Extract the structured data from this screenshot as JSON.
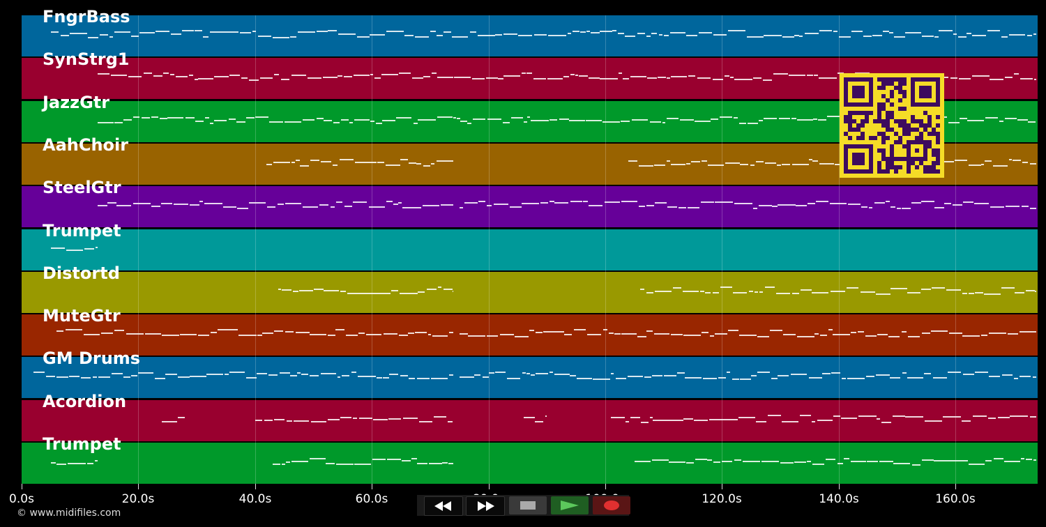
{
  "tracks": [
    {
      "name": "FngrBass",
      "color": "#00669c"
    },
    {
      "name": "SynStrg1",
      "color": "#99002f"
    },
    {
      "name": "JazzGtr",
      "color": "#00992a"
    },
    {
      "name": "AahChoir",
      "color": "#996300"
    },
    {
      "name": "SteelGtr",
      "color": "#660099"
    },
    {
      "name": "Trumpet",
      "color": "#009999"
    },
    {
      "name": "Distortd",
      "color": "#999900"
    },
    {
      "name": "MuteGtr",
      "color": "#992600"
    },
    {
      "name": "GM Drums",
      "color": "#00669c"
    },
    {
      "name": "Acordion",
      "color": "#99002f"
    },
    {
      "name": "Trumpet",
      "color": "#00992a"
    }
  ],
  "timeline": {
    "ticks": [
      "0.0s",
      "20.0s",
      "40.0s",
      "60.0s",
      "80.0s",
      "100.0s",
      "120.0s",
      "140.0s",
      "160.0s"
    ]
  },
  "transport": {
    "rewind_icon": "rewind-icon",
    "fast_forward_icon": "fast-forward-icon",
    "stop_icon": "stop-icon",
    "play_icon": "play-icon",
    "record_icon": "record-icon"
  },
  "footer": {
    "copyright": "© www.midifiles.com"
  },
  "qr_code": {
    "icon": "qr-code-icon"
  }
}
